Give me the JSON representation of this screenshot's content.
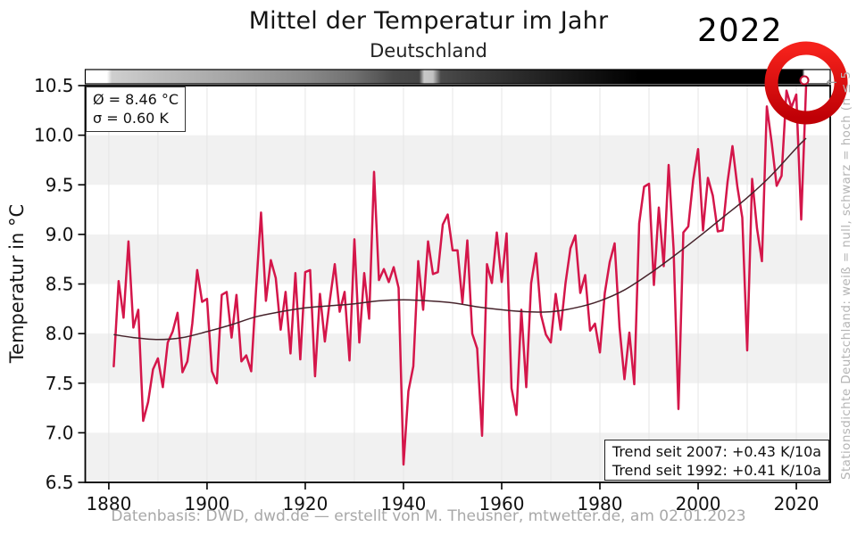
{
  "header": {
    "title": "Mittel der Temperatur im Jahr",
    "subtitle": "Deutschland",
    "highlight_year": "2022"
  },
  "annotations": {
    "mean_label": "Ø = 8.46 °C",
    "sigma_label": "σ = 0.60 K",
    "trend_line1": "Trend seit 2007: +0.43 K/10a",
    "trend_line2": "Trend seit 1992: +0.41 K/10a"
  },
  "caption": "Datenbasis: DWD, dwd.de — erstellt von M. Theusner, mtwetter.de, am 02.01.2023",
  "side_label": "Stationsdichte Deutschland: weiß = null, schwarz = hoch (n ≤ 5",
  "side_label_arrow": "←",
  "colors": {
    "series_red": "#d4164a",
    "trend_dark": "#46232b",
    "band_gray": "#f1f1f1",
    "grid_gray": "#e6e6e6",
    "ring_red_top": "#f5211b",
    "ring_red_bottom": "#bf0006",
    "marker_red": "#c11236",
    "axis_black": "#000000",
    "tick_text": "#111111",
    "caption_gray": "#a8a8a8",
    "side_label_gray": "#b5b5b5"
  },
  "chart_data": {
    "type": "line",
    "title": "Mittel der Temperatur im Jahr — Deutschland",
    "xlabel": "",
    "ylabel": "Temperatur in °C",
    "xlim": [
      1875.2,
      2026.9
    ],
    "ylim": [
      6.5,
      10.5
    ],
    "x_ticks": [
      1880,
      1900,
      1920,
      1940,
      1960,
      1980,
      2000,
      2020
    ],
    "y_ticks": [
      6.5,
      7.0,
      7.5,
      8.0,
      8.5,
      9.0,
      9.5,
      10.0,
      10.5
    ],
    "x_grid_step": 10,
    "gray_bands": [
      [
        9.5,
        10.0
      ],
      [
        8.5,
        9.0
      ],
      [
        7.5,
        8.0
      ],
      [
        6.5,
        7.0
      ]
    ],
    "mean": 8.46,
    "sigma": 0.6,
    "series": [
      {
        "name": "Jahresmitteltemperatur Deutschland",
        "color": "#d4164a",
        "start_year": 1881,
        "values": [
          7.67,
          8.53,
          8.16,
          8.93,
          8.06,
          8.24,
          7.12,
          7.31,
          7.64,
          7.75,
          7.46,
          7.91,
          8.02,
          8.21,
          7.61,
          7.72,
          8.1,
          8.64,
          8.32,
          8.35,
          7.62,
          7.5,
          8.39,
          8.42,
          7.96,
          8.39,
          7.72,
          7.78,
          7.62,
          8.45,
          9.22,
          8.33,
          8.74,
          8.56,
          8.04,
          8.42,
          7.8,
          8.61,
          7.74,
          8.62,
          8.64,
          7.57,
          8.4,
          7.92,
          8.33,
          8.7,
          8.22,
          8.42,
          7.73,
          8.95,
          7.91,
          8.61,
          8.15,
          9.63,
          8.54,
          8.65,
          8.52,
          8.67,
          8.46,
          6.68,
          7.42,
          7.67,
          8.73,
          8.24,
          8.93,
          8.6,
          8.62,
          9.1,
          9.2,
          8.84,
          8.84,
          8.31,
          8.94,
          8.0,
          7.85,
          6.97,
          8.7,
          8.51,
          9.02,
          8.52,
          9.01,
          7.45,
          7.18,
          8.24,
          7.46,
          8.51,
          8.81,
          8.19,
          7.99,
          7.91,
          8.4,
          8.04,
          8.51,
          8.86,
          8.99,
          8.41,
          8.59,
          8.03,
          8.1,
          7.81,
          8.41,
          8.72,
          8.91,
          8.06,
          7.54,
          8.01,
          7.49,
          9.11,
          9.48,
          9.51,
          8.49,
          9.27,
          8.68,
          9.7,
          8.86,
          7.24,
          9.02,
          9.08,
          9.55,
          9.86,
          9.04,
          9.57,
          9.39,
          9.03,
          9.04,
          9.53,
          9.89,
          9.48,
          9.17,
          7.83,
          9.56,
          9.06,
          8.73,
          10.29,
          9.92,
          9.49,
          9.59,
          10.45,
          10.28,
          10.41,
          9.15,
          10.5
        ]
      },
      {
        "name": "geglätteter Trend",
        "color": "#46232b",
        "points": [
          [
            1881,
            7.99
          ],
          [
            1885,
            7.96
          ],
          [
            1890,
            7.94
          ],
          [
            1895,
            7.96
          ],
          [
            1900,
            8.02
          ],
          [
            1905,
            8.09
          ],
          [
            1910,
            8.17
          ],
          [
            1915,
            8.22
          ],
          [
            1920,
            8.26
          ],
          [
            1925,
            8.28
          ],
          [
            1930,
            8.3
          ],
          [
            1935,
            8.33
          ],
          [
            1940,
            8.34
          ],
          [
            1945,
            8.33
          ],
          [
            1950,
            8.31
          ],
          [
            1955,
            8.27
          ],
          [
            1960,
            8.24
          ],
          [
            1965,
            8.22
          ],
          [
            1970,
            8.22
          ],
          [
            1975,
            8.26
          ],
          [
            1980,
            8.33
          ],
          [
            1985,
            8.44
          ],
          [
            1990,
            8.6
          ],
          [
            1995,
            8.78
          ],
          [
            2000,
            8.97
          ],
          [
            2005,
            9.17
          ],
          [
            2010,
            9.37
          ],
          [
            2015,
            9.6
          ],
          [
            2020,
            9.87
          ],
          [
            2022,
            9.97
          ]
        ]
      }
    ],
    "highlight_point": {
      "year": 2022,
      "value": 10.5
    },
    "station_density_bar": {
      "stops": [
        [
          1875.2,
          "#ffffff"
        ],
        [
          1879.6,
          "#ffffff"
        ],
        [
          1880.6,
          "#cfcfcf"
        ],
        [
          1890,
          "#bdbdbd"
        ],
        [
          1900,
          "#adadad"
        ],
        [
          1910,
          "#9c9c9c"
        ],
        [
          1920,
          "#8a8a8a"
        ],
        [
          1930,
          "#707070"
        ],
        [
          1938,
          "#4a4a4a"
        ],
        [
          1943.2,
          "#444444"
        ],
        [
          1944.2,
          "#c8c8c8"
        ],
        [
          1946,
          "#c2c2c2"
        ],
        [
          1947.6,
          "#4a4a4a"
        ],
        [
          1955,
          "#3a3a3a"
        ],
        [
          1965,
          "#282828"
        ],
        [
          1975,
          "#161616"
        ],
        [
          1988,
          "#000000"
        ],
        [
          2021.2,
          "#000000"
        ],
        [
          2021.7,
          "#ffffff"
        ],
        [
          2026.9,
          "#ffffff"
        ]
      ]
    }
  }
}
